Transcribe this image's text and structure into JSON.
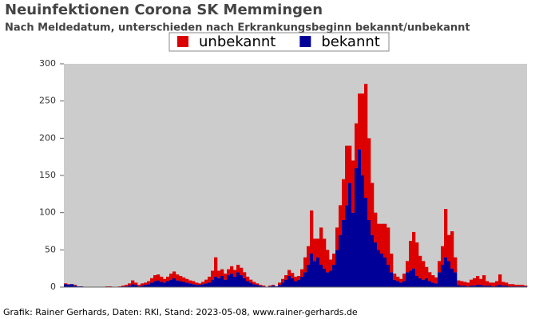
{
  "chart_data": {
    "type": "stacked_bar",
    "title": "Neuinfektionen Corona SK Memmingen",
    "subtitle": "Nach Meldedatum, unterschieden nach Erkrankungsbeginn bekannt/unbekannt",
    "source": "Grafik: Rainer Gerhards, Daten: RKI, Stand: 2023-05-08, www.rainer-gerhards.de",
    "categories": [
      null,
      null,
      null,
      null,
      null,
      null,
      null,
      null,
      null,
      null,
      null,
      null,
      null,
      null,
      null,
      null,
      null,
      null,
      null,
      null,
      null,
      null,
      null,
      null,
      null,
      null,
      null,
      null,
      null,
      null,
      null,
      null,
      null,
      null,
      null,
      null,
      null,
      null,
      null,
      null,
      null,
      null,
      null,
      null,
      null,
      null,
      null,
      null,
      null,
      null,
      null,
      null,
      null,
      null,
      null,
      null,
      null,
      null,
      null,
      null,
      null,
      null,
      null,
      null,
      null,
      null,
      null,
      null,
      null,
      null,
      null,
      null,
      null,
      null,
      null,
      null,
      null,
      null,
      null,
      null,
      null,
      null,
      null,
      null,
      null,
      null,
      null,
      null,
      null,
      null,
      null,
      null,
      null,
      null,
      null,
      null,
      null,
      null,
      null,
      null,
      null,
      null,
      null,
      null,
      null,
      null,
      null,
      null,
      null,
      null,
      null,
      null,
      null,
      null,
      null,
      null,
      null,
      null,
      null,
      null,
      null,
      null,
      null,
      null,
      null,
      null,
      null,
      null,
      null,
      null,
      null,
      null,
      null,
      null,
      null,
      null,
      null,
      null,
      null,
      null,
      null,
      null,
      null,
      null,
      null
    ],
    "series": [
      {
        "name": "bekannt",
        "color": "#000099",
        "values": [
          4,
          3,
          4,
          2,
          1,
          1,
          0,
          0,
          0,
          0,
          0,
          0,
          0,
          0,
          0,
          0,
          0,
          0,
          1,
          1,
          2,
          4,
          3,
          1,
          2,
          3,
          4,
          6,
          8,
          9,
          7,
          6,
          8,
          10,
          12,
          9,
          8,
          7,
          6,
          5,
          4,
          3,
          3,
          4,
          5,
          6,
          10,
          14,
          12,
          15,
          10,
          16,
          18,
          14,
          20,
          16,
          12,
          8,
          6,
          4,
          3,
          2,
          1,
          0,
          1,
          2,
          1,
          3,
          6,
          10,
          15,
          12,
          8,
          10,
          14,
          20,
          30,
          45,
          35,
          40,
          30,
          25,
          20,
          22,
          30,
          50,
          70,
          90,
          110,
          140,
          100,
          160,
          185,
          150,
          120,
          90,
          70,
          60,
          50,
          45,
          40,
          30,
          20,
          10,
          8,
          6,
          8,
          20,
          22,
          25,
          15,
          12,
          10,
          12,
          8,
          6,
          5,
          20,
          30,
          40,
          35,
          25,
          20,
          3,
          2,
          2,
          1,
          2,
          2,
          3,
          3,
          2,
          2,
          2,
          1,
          2,
          3,
          2,
          2,
          1,
          1,
          1,
          1,
          1,
          1
        ]
      },
      {
        "name": "unbekannt",
        "color": "#dd0000",
        "values": [
          1,
          1,
          0,
          1,
          0,
          0,
          0,
          0,
          0,
          0,
          0,
          0,
          0,
          1,
          1,
          0,
          0,
          1,
          1,
          2,
          3,
          5,
          3,
          2,
          3,
          3,
          4,
          6,
          8,
          8,
          7,
          5,
          6,
          8,
          9,
          8,
          7,
          6,
          5,
          4,
          4,
          3,
          2,
          3,
          5,
          8,
          12,
          26,
          10,
          9,
          8,
          8,
          10,
          9,
          10,
          10,
          8,
          6,
          4,
          3,
          2,
          1,
          1,
          0,
          1,
          1,
          0,
          3,
          5,
          6,
          8,
          7,
          6,
          5,
          10,
          20,
          25,
          58,
          30,
          25,
          50,
          40,
          30,
          15,
          15,
          30,
          40,
          55,
          80,
          50,
          70,
          60,
          75,
          110,
          153,
          110,
          70,
          40,
          35,
          40,
          45,
          50,
          25,
          8,
          6,
          5,
          10,
          15,
          40,
          49,
          45,
          30,
          25,
          15,
          12,
          10,
          8,
          15,
          25,
          65,
          35,
          50,
          20,
          6,
          6,
          5,
          5,
          8,
          10,
          12,
          8,
          14,
          6,
          4,
          5,
          6,
          14,
          5,
          4,
          3,
          3,
          2,
          2,
          2,
          1
        ]
      }
    ],
    "legend_order": [
      1,
      0
    ],
    "ylim": [
      0,
      300
    ],
    "yticks": [
      0,
      50,
      100,
      150,
      200,
      250,
      300
    ]
  }
}
